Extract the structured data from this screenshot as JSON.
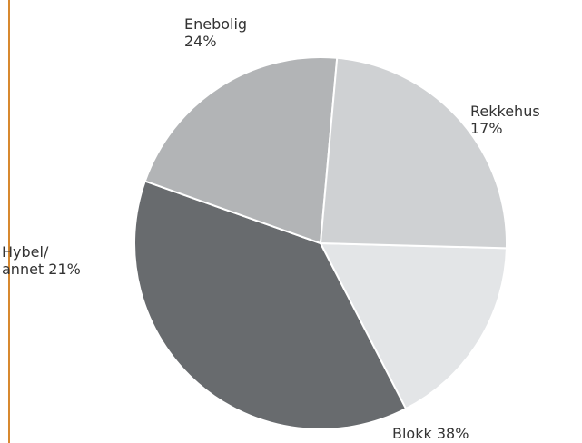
{
  "chart_data": {
    "type": "pie",
    "title": "",
    "slices": [
      {
        "name": "Rekkehus",
        "label_lines": [
          "Rekkehus",
          "17%"
        ],
        "value": 17,
        "color": "#e3e5e7"
      },
      {
        "name": "Blokk",
        "label_lines": [
          "Blokk 38%"
        ],
        "value": 38,
        "color": "#686b6e"
      },
      {
        "name": "Hybel/annet",
        "label_lines": [
          "Hybel/",
          "annet 21%"
        ],
        "value": 21,
        "color": "#b2b4b6"
      },
      {
        "name": "Enebolig",
        "label_lines": [
          "Enebolig",
          "24%"
        ],
        "value": 24,
        "color": "#cfd1d3"
      }
    ],
    "legend": "none",
    "labels": "outside",
    "start_angle_deg": 1.5,
    "direction": "clockwise"
  },
  "colors": {
    "left_rule": "#d8892f",
    "label_text": "#333333",
    "slice_border": "#ffffff"
  }
}
